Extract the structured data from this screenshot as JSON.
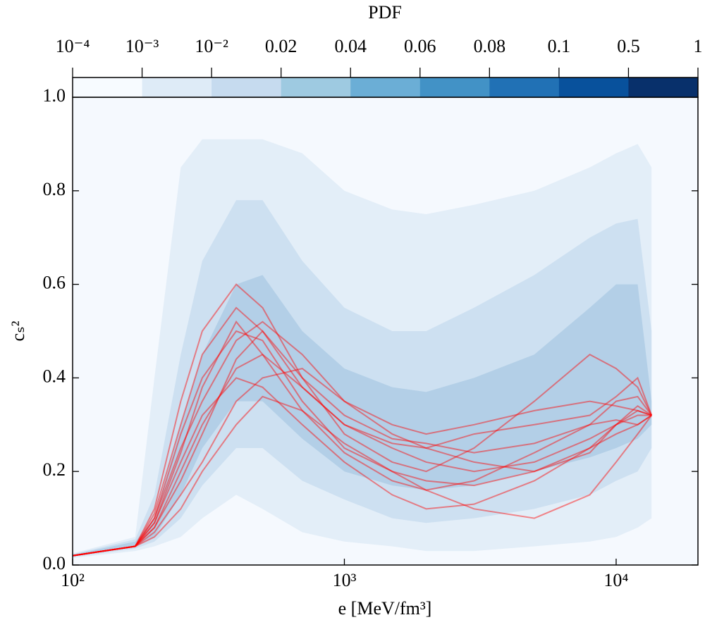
{
  "chart_data": {
    "type": "line",
    "x_label": "e [MeV/fm³]",
    "y_label": "cₛ²",
    "xscale": "log",
    "xlim": [
      100,
      20000
    ],
    "ylim": [
      0,
      1
    ],
    "xticks": [
      {
        "value": 100,
        "label": "10²"
      },
      {
        "value": 1000,
        "label": "10³"
      },
      {
        "value": 10000,
        "label": "10⁴"
      }
    ],
    "yticks": [
      {
        "value": 0,
        "label": "0.0"
      },
      0.2,
      0.4,
      0.6,
      0.8,
      {
        "value": 1,
        "label": "1.0"
      }
    ],
    "background": "#f5f9fe",
    "x": [
      100,
      170,
      200,
      250,
      300,
      400,
      500,
      700,
      1000,
      1500,
      2000,
      3000,
      5000,
      8000,
      10000,
      12000,
      13500
    ],
    "bands": [
      {
        "color": "#dce9f5",
        "lower": [
          0.015,
          0.03,
          0.04,
          0.06,
          0.1,
          0.15,
          0.12,
          0.07,
          0.05,
          0.04,
          0.03,
          0.03,
          0.04,
          0.05,
          0.06,
          0.08,
          0.1
        ],
        "upper": [
          0.025,
          0.06,
          0.4,
          0.85,
          0.91,
          0.91,
          0.91,
          0.88,
          0.8,
          0.76,
          0.75,
          0.77,
          0.8,
          0.85,
          0.88,
          0.9,
          0.85
        ]
      },
      {
        "color": "#c6dbef",
        "lower": [
          0.017,
          0.035,
          0.05,
          0.1,
          0.17,
          0.25,
          0.25,
          0.18,
          0.14,
          0.1,
          0.09,
          0.1,
          0.12,
          0.15,
          0.18,
          0.2,
          0.25
        ],
        "upper": [
          0.023,
          0.055,
          0.15,
          0.45,
          0.65,
          0.78,
          0.78,
          0.65,
          0.55,
          0.5,
          0.5,
          0.55,
          0.62,
          0.7,
          0.73,
          0.74,
          0.5
        ]
      },
      {
        "color": "#a9c9e3",
        "lower": [
          0.018,
          0.04,
          0.06,
          0.15,
          0.25,
          0.35,
          0.35,
          0.27,
          0.2,
          0.17,
          0.16,
          0.17,
          0.2,
          0.23,
          0.25,
          0.27,
          0.3
        ],
        "upper": [
          0.022,
          0.05,
          0.1,
          0.3,
          0.45,
          0.6,
          0.62,
          0.5,
          0.42,
          0.38,
          0.37,
          0.4,
          0.45,
          0.55,
          0.6,
          0.6,
          0.35
        ]
      }
    ],
    "line_color": "#ff0000",
    "series": [
      {
        "values": [
          0.02,
          0.04,
          0.08,
          0.2,
          0.3,
          0.42,
          0.45,
          0.38,
          0.3,
          0.25,
          0.22,
          0.2,
          0.22,
          0.27,
          0.3,
          0.32,
          0.32
        ]
      },
      {
        "values": [
          0.02,
          0.04,
          0.1,
          0.28,
          0.4,
          0.5,
          0.48,
          0.35,
          0.25,
          0.2,
          0.18,
          0.17,
          0.2,
          0.25,
          0.28,
          0.3,
          0.32
        ]
      },
      {
        "values": [
          0.02,
          0.04,
          0.07,
          0.15,
          0.22,
          0.35,
          0.4,
          0.42,
          0.35,
          0.28,
          0.25,
          0.22,
          0.2,
          0.24,
          0.3,
          0.34,
          0.32
        ]
      },
      {
        "values": [
          0.02,
          0.04,
          0.12,
          0.35,
          0.5,
          0.6,
          0.55,
          0.4,
          0.28,
          0.22,
          0.2,
          0.25,
          0.35,
          0.45,
          0.42,
          0.38,
          0.32
        ]
      },
      {
        "values": [
          0.02,
          0.04,
          0.09,
          0.22,
          0.32,
          0.4,
          0.38,
          0.3,
          0.22,
          0.15,
          0.12,
          0.13,
          0.18,
          0.25,
          0.3,
          0.33,
          0.32
        ]
      },
      {
        "values": [
          0.02,
          0.04,
          0.1,
          0.25,
          0.35,
          0.48,
          0.52,
          0.45,
          0.35,
          0.3,
          0.28,
          0.3,
          0.33,
          0.35,
          0.34,
          0.33,
          0.32
        ]
      },
      {
        "values": [
          0.02,
          0.04,
          0.06,
          0.12,
          0.2,
          0.3,
          0.36,
          0.33,
          0.26,
          0.2,
          0.16,
          0.12,
          0.1,
          0.15,
          0.22,
          0.28,
          0.32
        ]
      },
      {
        "values": [
          0.02,
          0.04,
          0.11,
          0.3,
          0.45,
          0.55,
          0.5,
          0.38,
          0.3,
          0.26,
          0.25,
          0.28,
          0.3,
          0.32,
          0.36,
          0.4,
          0.32
        ]
      },
      {
        "values": [
          0.02,
          0.04,
          0.08,
          0.18,
          0.28,
          0.44,
          0.5,
          0.4,
          0.32,
          0.27,
          0.26,
          0.24,
          0.26,
          0.3,
          0.31,
          0.3,
          0.32
        ]
      },
      {
        "values": [
          0.02,
          0.04,
          0.09,
          0.24,
          0.38,
          0.52,
          0.45,
          0.33,
          0.24,
          0.18,
          0.16,
          0.18,
          0.24,
          0.3,
          0.35,
          0.36,
          0.32
        ]
      }
    ],
    "colorbar": {
      "title": "PDF",
      "labels": [
        "10⁻⁴",
        "10⁻³",
        "10⁻²",
        "0.02",
        "0.04",
        "0.06",
        "0.08",
        "0.1",
        "0.5",
        "1"
      ],
      "colors": [
        "#f7fbff",
        "#deebf7",
        "#c6dbef",
        "#9ecae1",
        "#6baed6",
        "#4292c6",
        "#2171b5",
        "#08519c",
        "#08306b"
      ]
    }
  }
}
